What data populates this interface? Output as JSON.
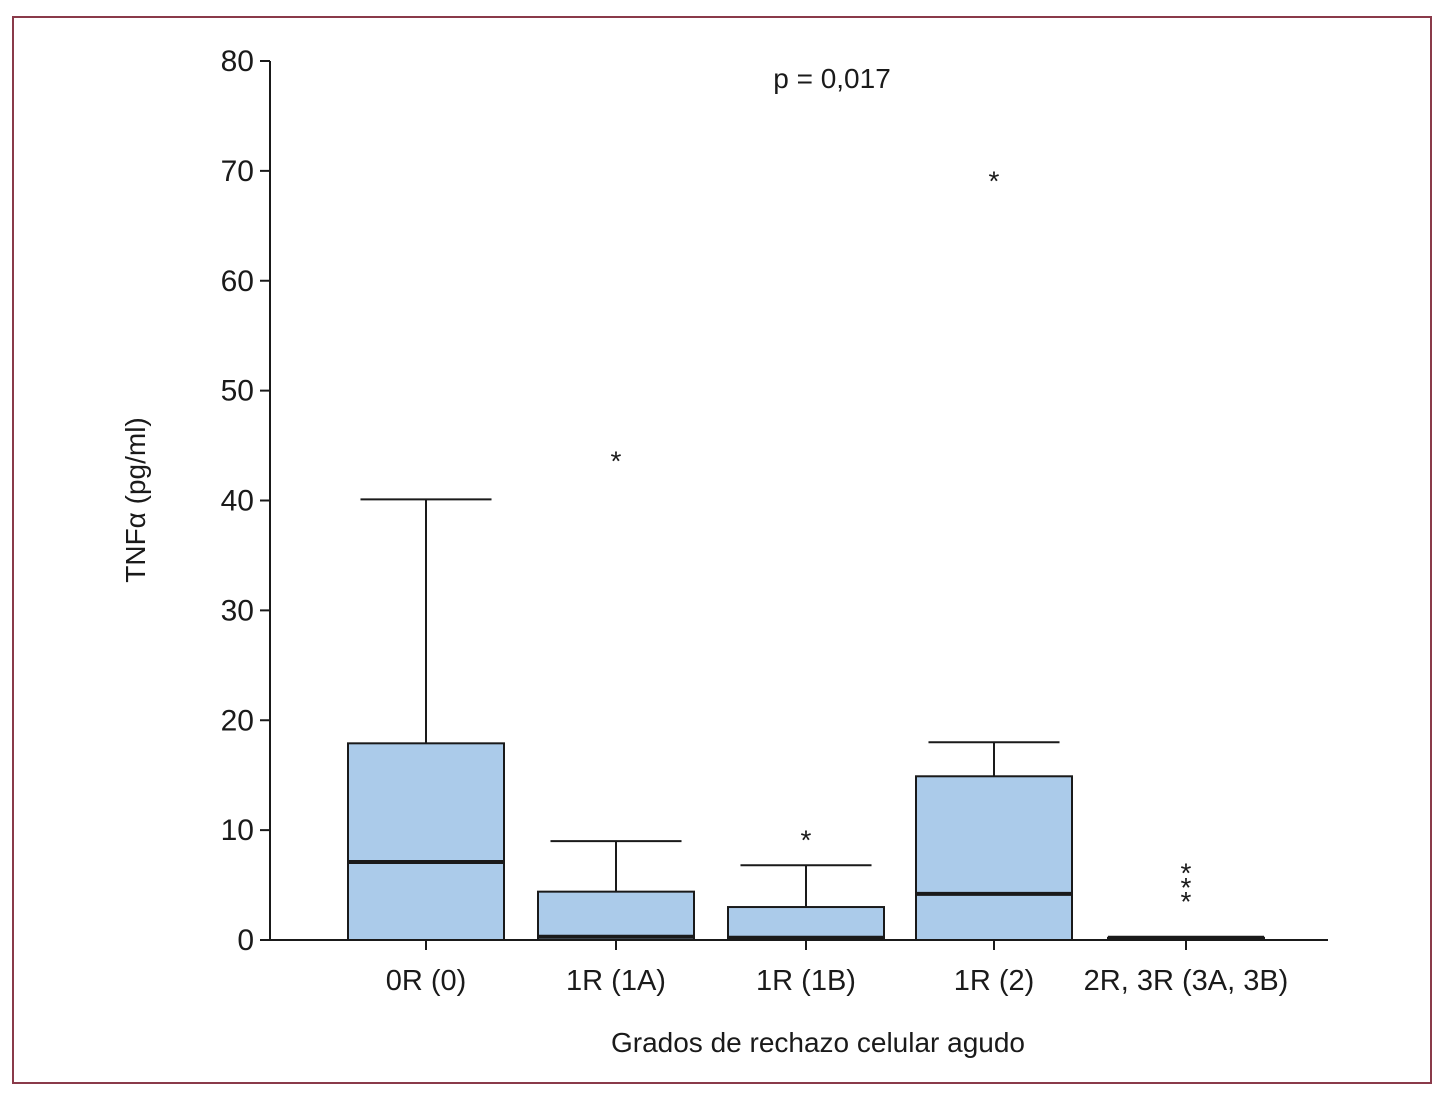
{
  "chart_data": {
    "type": "box",
    "annotation": "p = 0,017",
    "xlabel": "Grados de rechazo celular agudo",
    "ylabel": "TNFα (pg/ml)",
    "ylim": [
      0,
      80
    ],
    "yticks": [
      "0",
      "10",
      "20",
      "30",
      "40",
      "50",
      "60",
      "70",
      "80"
    ],
    "categories": [
      "0R (0)",
      "1R (1A)",
      "1R (1B)",
      "1R (2)",
      "2R, 3R (3A, 3B)"
    ],
    "boxes": [
      {
        "category": "0R (0)",
        "whisker_low": 0,
        "q1": 0,
        "median": 7.1,
        "q3": 17.9,
        "whisker_high": 40.1,
        "outliers": []
      },
      {
        "category": "1R (1A)",
        "whisker_low": 0,
        "q1": 0,
        "median": 0.3,
        "q3": 4.4,
        "whisker_high": 9.0,
        "outliers": [
          44.0
        ]
      },
      {
        "category": "1R (1B)",
        "whisker_low": 0,
        "q1": 0,
        "median": 0.2,
        "q3": 3.0,
        "whisker_high": 6.8,
        "outliers": [
          9.5
        ]
      },
      {
        "category": "1R (2)",
        "whisker_low": 0,
        "q1": 0,
        "median": 4.2,
        "q3": 14.9,
        "whisker_high": 18.0,
        "outliers": [
          69.5
        ]
      },
      {
        "category": "2R, 3R (3A, 3B)",
        "whisker_low": 0,
        "q1": 0,
        "median": 0.2,
        "q3": 0.2,
        "whisker_high": 0.2,
        "outliers": [
          3.9,
          5.2,
          6.5
        ]
      }
    ],
    "colors": {
      "box_fill": "#abcbea",
      "stroke": "#1a1a1a",
      "frame": "#8a3a4a"
    }
  }
}
